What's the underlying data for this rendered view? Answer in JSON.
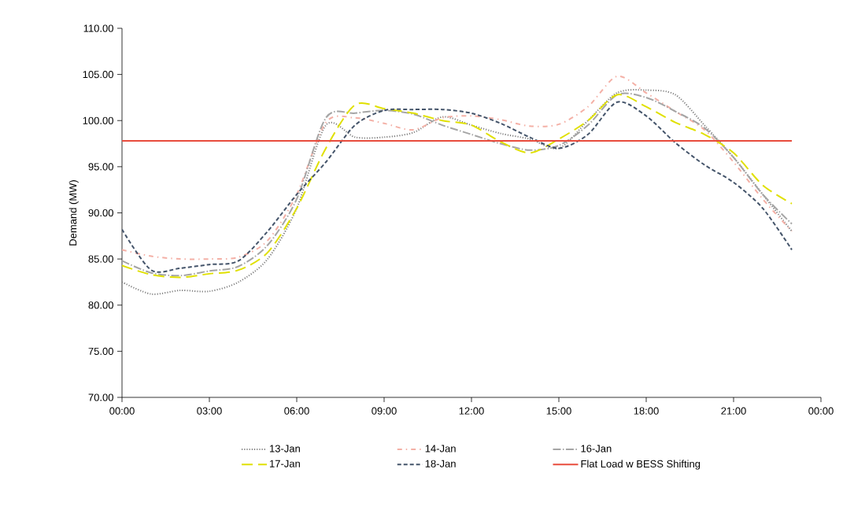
{
  "chart_data": {
    "type": "line",
    "ylabel": "Demand (MW)",
    "x": [
      0,
      1,
      2,
      3,
      4,
      5,
      6,
      7,
      8,
      9,
      10,
      11,
      12,
      13,
      14,
      15,
      16,
      17,
      18,
      19,
      20,
      21,
      22,
      23
    ],
    "xlim": [
      0,
      24
    ],
    "xticks": [
      {
        "value": 0,
        "label": "00:00"
      },
      {
        "value": 3,
        "label": "03:00"
      },
      {
        "value": 6,
        "label": "06:00"
      },
      {
        "value": 9,
        "label": "09:00"
      },
      {
        "value": 12,
        "label": "12:00"
      },
      {
        "value": 15,
        "label": "15:00"
      },
      {
        "value": 18,
        "label": "18:00"
      },
      {
        "value": 21,
        "label": "21:00"
      },
      {
        "value": 24,
        "label": "00:00"
      }
    ],
    "ylim": [
      70,
      110
    ],
    "yticks": [
      {
        "value": 70,
        "label": "70.00"
      },
      {
        "value": 75,
        "label": "75.00"
      },
      {
        "value": 80,
        "label": "80.00"
      },
      {
        "value": 85,
        "label": "85.00"
      },
      {
        "value": 90,
        "label": "90.00"
      },
      {
        "value": 95,
        "label": "95.00"
      },
      {
        "value": 100,
        "label": "100.00"
      },
      {
        "value": 105,
        "label": "105.00"
      },
      {
        "value": 110,
        "label": "110.00"
      }
    ],
    "grid": false,
    "legend": "bottom",
    "marker": "none",
    "series": [
      {
        "name": "13-Jan",
        "color": "#7f7f7f",
        "line_style": "dotted",
        "values": [
          82.5,
          81.2,
          81.6,
          81.5,
          82.5,
          85,
          90.5,
          99.5,
          98.2,
          98.2,
          98.7,
          100.4,
          99.5,
          98.6,
          98,
          97,
          100,
          103,
          103.3,
          102.8,
          99.5,
          96,
          92,
          88
        ]
      },
      {
        "name": "14-Jan",
        "color": "#f4b0a6",
        "line_style": "dashdot",
        "values": [
          86,
          85.3,
          85,
          85,
          85.2,
          87,
          92,
          99.8,
          100.3,
          99.7,
          99,
          100.3,
          100.5,
          100.1,
          99.4,
          99.6,
          101.5,
          104.8,
          103,
          101,
          99,
          95.5,
          91.5,
          88
        ]
      },
      {
        "name": "16-Jan",
        "color": "#a5a5a5",
        "line_style": "longdashdot",
        "values": [
          84.8,
          83.5,
          83.2,
          83.7,
          84.2,
          86.5,
          91.5,
          100.3,
          100.8,
          101.1,
          100.7,
          99.5,
          98.5,
          97.5,
          96.8,
          97.3,
          99.5,
          102.8,
          102.5,
          101,
          99.2,
          96,
          92,
          88.8
        ]
      },
      {
        "name": "17-Jan",
        "color": "#e0e000",
        "line_style": "longdash",
        "values": [
          84.3,
          83.3,
          83,
          83.4,
          83.8,
          85.7,
          90.5,
          97,
          101.7,
          101.3,
          100.8,
          100,
          99.5,
          97.7,
          96.5,
          98,
          100,
          102.8,
          101.5,
          99.8,
          98.5,
          96.5,
          93,
          91
        ]
      },
      {
        "name": "18-Jan",
        "color": "#44546a",
        "line_style": "dashed",
        "values": [
          88.2,
          83.8,
          84,
          84.4,
          84.8,
          88,
          92,
          95.5,
          99.5,
          101.1,
          101.2,
          101.2,
          100.8,
          99.7,
          98.2,
          97,
          98.5,
          102,
          100.5,
          97.6,
          95.2,
          93.3,
          90.5,
          86
        ]
      },
      {
        "name": "Flat Load w BESS Shifting",
        "color": "#e84c3d",
        "line_style": "solid",
        "x": [
          0,
          23
        ],
        "values": [
          97.8,
          97.8
        ]
      }
    ]
  }
}
